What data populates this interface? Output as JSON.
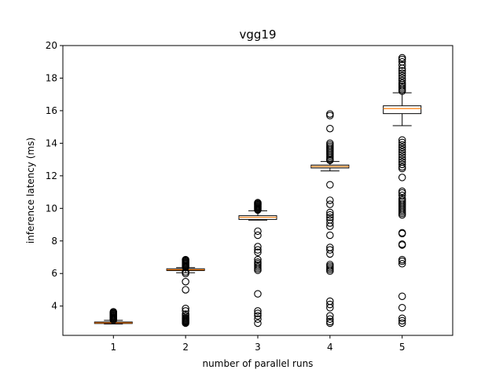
{
  "chart_data": {
    "type": "box",
    "title": "vgg19",
    "xlabel": "number of parallel runs",
    "ylabel": "inference latency (ms)",
    "ylim": [
      2.2,
      20
    ],
    "yticks": [
      4,
      6,
      8,
      10,
      12,
      14,
      16,
      18,
      20
    ],
    "categories": [
      "1",
      "2",
      "3",
      "4",
      "5"
    ],
    "colors": {
      "median": "#ff7f0e",
      "box": "#000000",
      "flier": "#000000"
    },
    "boxes": [
      {
        "x": "1",
        "q1": 2.93,
        "median": 2.97,
        "q3": 3.02,
        "whisker_low": 2.9,
        "whisker_high": 3.12,
        "fliers": [
          3.15,
          3.2,
          3.25,
          3.3,
          3.35,
          3.4,
          3.45,
          3.5,
          3.55,
          3.6,
          3.65
        ]
      },
      {
        "x": "2",
        "q1": 6.18,
        "median": 6.23,
        "q3": 6.29,
        "whisker_low": 6.05,
        "whisker_high": 6.36,
        "fliers": [
          2.95,
          3.0,
          3.05,
          3.1,
          3.15,
          3.2,
          3.25,
          3.3,
          3.4,
          3.5,
          3.7,
          3.85,
          5.0,
          5.5,
          6.0,
          6.1,
          6.4,
          6.45,
          6.5,
          6.55,
          6.6,
          6.65,
          6.7,
          6.75,
          6.8,
          6.85
        ]
      },
      {
        "x": "3",
        "q1": 9.32,
        "median": 9.45,
        "q3": 9.55,
        "whisker_low": 9.28,
        "whisker_high": 9.85,
        "fliers": [
          2.95,
          3.2,
          3.4,
          3.55,
          3.7,
          4.75,
          6.2,
          6.3,
          6.4,
          6.5,
          6.6,
          6.7,
          6.85,
          7.3,
          7.45,
          7.65,
          8.35,
          8.6,
          9.9,
          9.95,
          10.0,
          10.05,
          10.1,
          10.15,
          10.2,
          10.25,
          10.3,
          10.35
        ]
      },
      {
        "x": "4",
        "q1": 12.48,
        "median": 12.57,
        "q3": 12.66,
        "whisker_low": 12.3,
        "whisker_high": 12.88,
        "fliers": [
          2.95,
          3.05,
          3.2,
          3.4,
          3.9,
          4.1,
          4.3,
          6.15,
          6.25,
          6.35,
          6.45,
          6.55,
          7.2,
          7.45,
          7.6,
          8.35,
          8.9,
          9.1,
          9.3,
          9.45,
          9.6,
          9.75,
          10.25,
          10.5,
          11.45,
          12.95,
          13.0,
          13.1,
          13.2,
          13.3,
          13.4,
          13.5,
          13.6,
          13.7,
          13.8,
          13.9,
          14.0,
          14.9,
          15.7,
          15.8
        ]
      },
      {
        "x": "5",
        "q1": 15.82,
        "median": 16.13,
        "q3": 16.3,
        "whisker_low": 15.08,
        "whisker_high": 17.1,
        "fliers": [
          2.95,
          3.1,
          3.25,
          3.9,
          4.6,
          6.6,
          6.75,
          6.85,
          7.75,
          7.8,
          8.45,
          8.5,
          9.6,
          9.7,
          9.8,
          9.9,
          10.0,
          10.1,
          10.2,
          10.3,
          10.4,
          10.5,
          10.6,
          10.8,
          10.95,
          11.05,
          11.9,
          12.45,
          12.55,
          12.7,
          12.85,
          13.0,
          13.15,
          13.3,
          13.45,
          13.6,
          13.75,
          13.9,
          14.05,
          14.2,
          17.2,
          17.3,
          17.4,
          17.5,
          17.6,
          17.7,
          17.85,
          18.0,
          18.15,
          18.3,
          18.45,
          18.6,
          18.8,
          19.0,
          19.15,
          19.25
        ]
      }
    ]
  }
}
